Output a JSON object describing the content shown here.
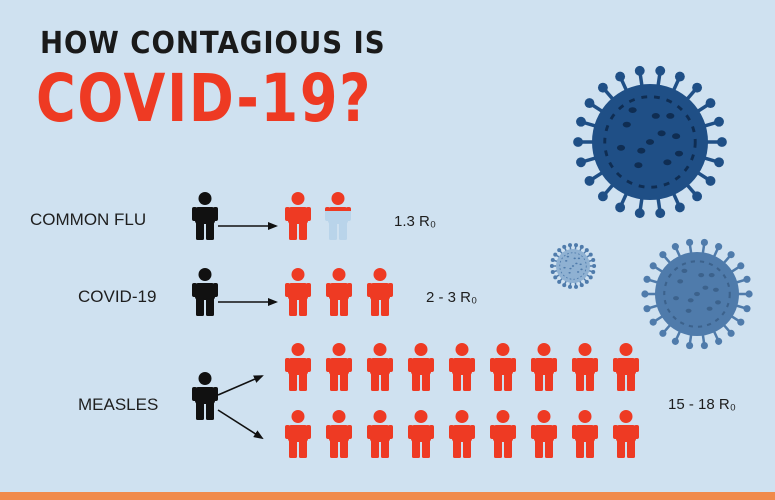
{
  "title": {
    "line1": "HOW CONTAGIOUS IS",
    "line2": "COVID-19?"
  },
  "rows": [
    {
      "label": "COMMON FLU",
      "rate": "1.3 R₀",
      "infected": 1.3
    },
    {
      "label": "COVID-19",
      "rate": "2 - 3 R₀",
      "infected": 3
    },
    {
      "label": "MEASLES",
      "rate": "15 - 18 R₀",
      "infected": 18
    }
  ],
  "colors": {
    "background": "#cfe1f0",
    "source_person": "#111111",
    "infected_person": "#ee3a23",
    "partial_person": "#b9d4ea",
    "virus_dark": "#1f4f86",
    "virus_mid": "#4f7bab",
    "virus_light": "#8fb1d2",
    "footer": "#f08a4b"
  },
  "icons": {
    "person": "person-icon",
    "arrow": "arrow-icon",
    "virus": "coronavirus-icon"
  }
}
